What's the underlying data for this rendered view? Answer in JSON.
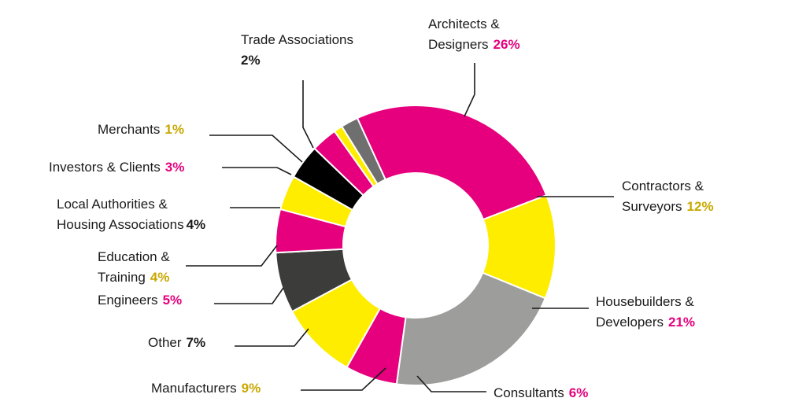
{
  "chart_data": {
    "type": "donut",
    "title": "",
    "slices": [
      {
        "label_line1": "Architects &",
        "label_line2": "Designers",
        "value": 26,
        "value_text": "26%",
        "color": "#e6007e",
        "pct_color": "#e6007e"
      },
      {
        "label_line1": "Contractors &",
        "label_line2": "Surveyors",
        "value": 12,
        "value_text": "12%",
        "color": "#ffed00",
        "pct_color": "#c9a800"
      },
      {
        "label_line1": "Housebuilders &",
        "label_line2": "Developers",
        "value": 21,
        "value_text": "21%",
        "color": "#9d9d9c",
        "pct_color": "#e6007e"
      },
      {
        "label_line1": "Consultants",
        "label_line2": "",
        "value": 6,
        "value_text": "6%",
        "color": "#e6007e",
        "pct_color": "#e6007e"
      },
      {
        "label_line1": "Manufacturers",
        "label_line2": "",
        "value": 9,
        "value_text": "9%",
        "color": "#ffed00",
        "pct_color": "#c9a800"
      },
      {
        "label_line1": "Other",
        "label_line2": "",
        "value": 7,
        "value_text": "7%",
        "color": "#3c3c3b",
        "pct_color": "#1a1a1a"
      },
      {
        "label_line1": "Engineers",
        "label_line2": "",
        "value": 5,
        "value_text": "5%",
        "color": "#e6007e",
        "pct_color": "#e6007e"
      },
      {
        "label_line1": "Education &",
        "label_line2": "Training",
        "value": 4,
        "value_text": "4%",
        "color": "#ffed00",
        "pct_color": "#c9a800"
      },
      {
        "label_line1": "Local Authorities &",
        "label_line2": "Housing Associations",
        "value": 4,
        "value_text": "4%",
        "color": "#000000",
        "pct_color": "#1a1a1a"
      },
      {
        "label_line1": "Investors & Clients",
        "label_line2": "",
        "value": 3,
        "value_text": "3%",
        "color": "#e6007e",
        "pct_color": "#e6007e"
      },
      {
        "label_line1": "Merchants",
        "label_line2": "",
        "value": 1,
        "value_text": "1%",
        "color": "#ffed00",
        "pct_color": "#c9a800"
      },
      {
        "label_line1": "Trade Associations",
        "label_line2": "",
        "value": 2,
        "value_text": "2%",
        "color": "#706f6f",
        "pct_color": "#1a1a1a"
      }
    ]
  }
}
